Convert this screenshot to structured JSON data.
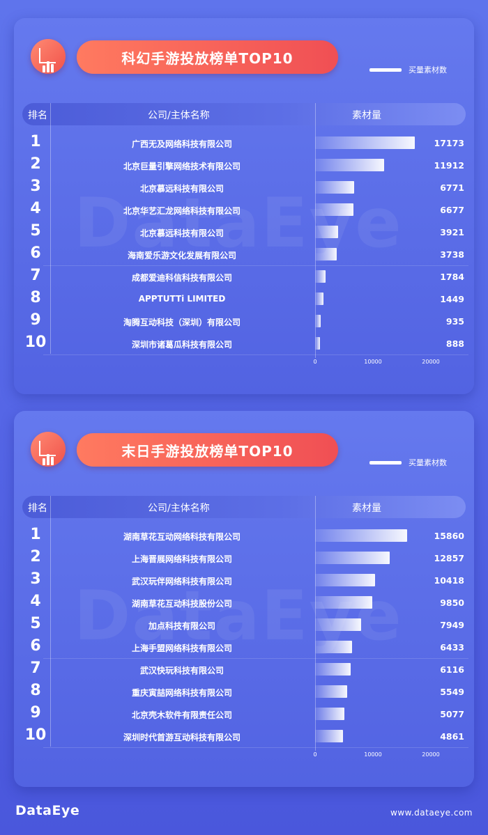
{
  "footer": {
    "logo": "DataEye",
    "url": "www.dataeye.com"
  },
  "headers": {
    "rank": "排名",
    "company": "公司/主体名称",
    "value": "素材量"
  },
  "chart_data": [
    {
      "type": "bar",
      "title": "科幻手游投放榜单TOP10",
      "legend": "买量素材数",
      "watermark": "DataEye",
      "ranks": [
        "1",
        "2",
        "3",
        "4",
        "5",
        "6",
        "7",
        "8",
        "9",
        "10"
      ],
      "categories": [
        "广西无及网络科技有限公司",
        "北京巨量引擎网络技术有限公司",
        "北京慕远科技有限公司",
        "北京华艺汇龙网络科技有限公司",
        "北京慕远科技有限公司",
        "海南爱乐游文化发展有限公司",
        "成都爱迪科信科技有限公司",
        "APPTUTTi LIMITED",
        "淘腾互动科技（深圳）有限公司",
        "深圳市诸葛瓜科技有限公司"
      ],
      "values": [
        17173,
        11912,
        6771,
        6677,
        3921,
        3738,
        1784,
        1449,
        935,
        888
      ],
      "value_labels": [
        "17173",
        "11912",
        "6771",
        "6677",
        "3921",
        "3738",
        "1784",
        "1449",
        "935",
        "888"
      ],
      "xlim": [
        0,
        20000
      ],
      "ticks": [
        "0",
        "10000",
        "20000"
      ]
    },
    {
      "type": "bar",
      "title": "末日手游投放榜单TOP10",
      "legend": "买量素材数",
      "watermark": "DataEye",
      "ranks": [
        "1",
        "2",
        "3",
        "4",
        "5",
        "6",
        "7",
        "8",
        "9",
        "10"
      ],
      "categories": [
        "湖南草花互动网络科技有限公司",
        "上海晋展网络科技有限公司",
        "武汉玩伴网络科技有限公司",
        "湖南草花互动科技股份公司",
        "加点科技有限公司",
        "上海手盟网络科技有限公司",
        "武汉快玩科技有限公司",
        "重庆寅喆网络科技有限公司",
        "北京壳木软件有限责任公司",
        "深圳时代首游互动科技有限公司"
      ],
      "values": [
        15860,
        12857,
        10418,
        9850,
        7949,
        6433,
        6116,
        5549,
        5077,
        4861
      ],
      "value_labels": [
        "15860",
        "12857",
        "10418",
        "9850",
        "7949",
        "6433",
        "6116",
        "5549",
        "5077",
        "4861"
      ],
      "xlim": [
        0,
        20000
      ],
      "ticks": [
        "0",
        "10000",
        "20000"
      ]
    }
  ]
}
